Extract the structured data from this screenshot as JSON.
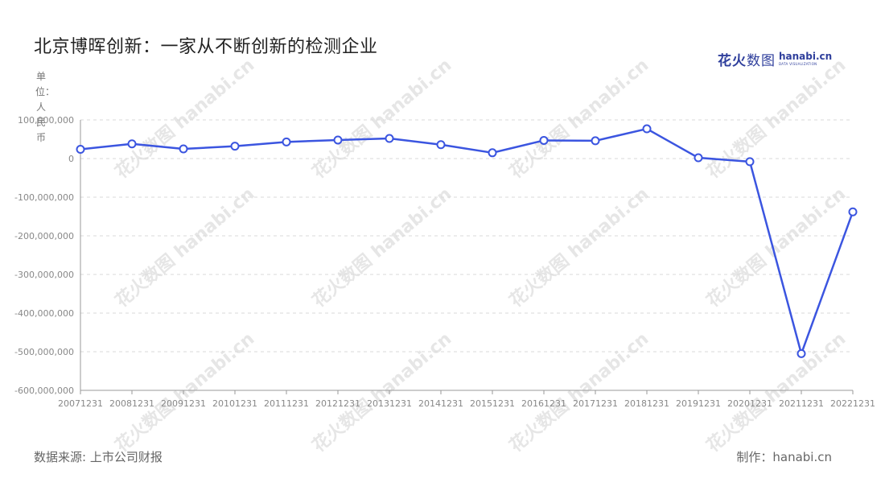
{
  "header": {
    "title": "北京博晖创新：一家从不断创新的检测企业",
    "logo_cn_bold": "花火",
    "logo_cn_thin": "数图",
    "logo_en": "hanabi.cn",
    "logo_sub": "DATA VISUALIZATION"
  },
  "watermark": "花火数图 hanabi.cn",
  "footer": {
    "source": "数据来源: 上市公司财报",
    "maker": "制作：hanabi.cn"
  },
  "colors": {
    "line": "#3b55e0",
    "grid": "#d9d9d9",
    "axis": "#999999",
    "tick_text": "#888888"
  },
  "chart_data": {
    "type": "line",
    "title": "北京博晖创新：一家从不断创新的检测企业",
    "ylabel": "单位：人民币",
    "categories": [
      "20071231",
      "20081231",
      "20091231",
      "20101231",
      "20111231",
      "20121231",
      "20131231",
      "20141231",
      "20151231",
      "20161231",
      "20171231",
      "20181231",
      "20191231",
      "20201231",
      "20211231",
      "20221231"
    ],
    "series": [
      {
        "values": [
          24000000,
          38000000,
          25000000,
          32000000,
          43000000,
          48000000,
          52000000,
          36000000,
          15000000,
          47000000,
          46000000,
          77000000,
          2000000,
          -8000000,
          -505000000,
          -138000000
        ]
      }
    ],
    "yticks": [
      100000000,
      0,
      -100000000,
      -200000000,
      -300000000,
      -400000000,
      -500000000,
      -600000000
    ],
    "ytick_labels": [
      "100,000,000",
      "0",
      "-100,000,000",
      "-200,000,000",
      "-300,000,000",
      "-400,000,000",
      "-500,000,000",
      "-600,000,000"
    ],
    "ylim": [
      -600000000,
      100000000
    ],
    "grid": true,
    "legend": "none"
  }
}
